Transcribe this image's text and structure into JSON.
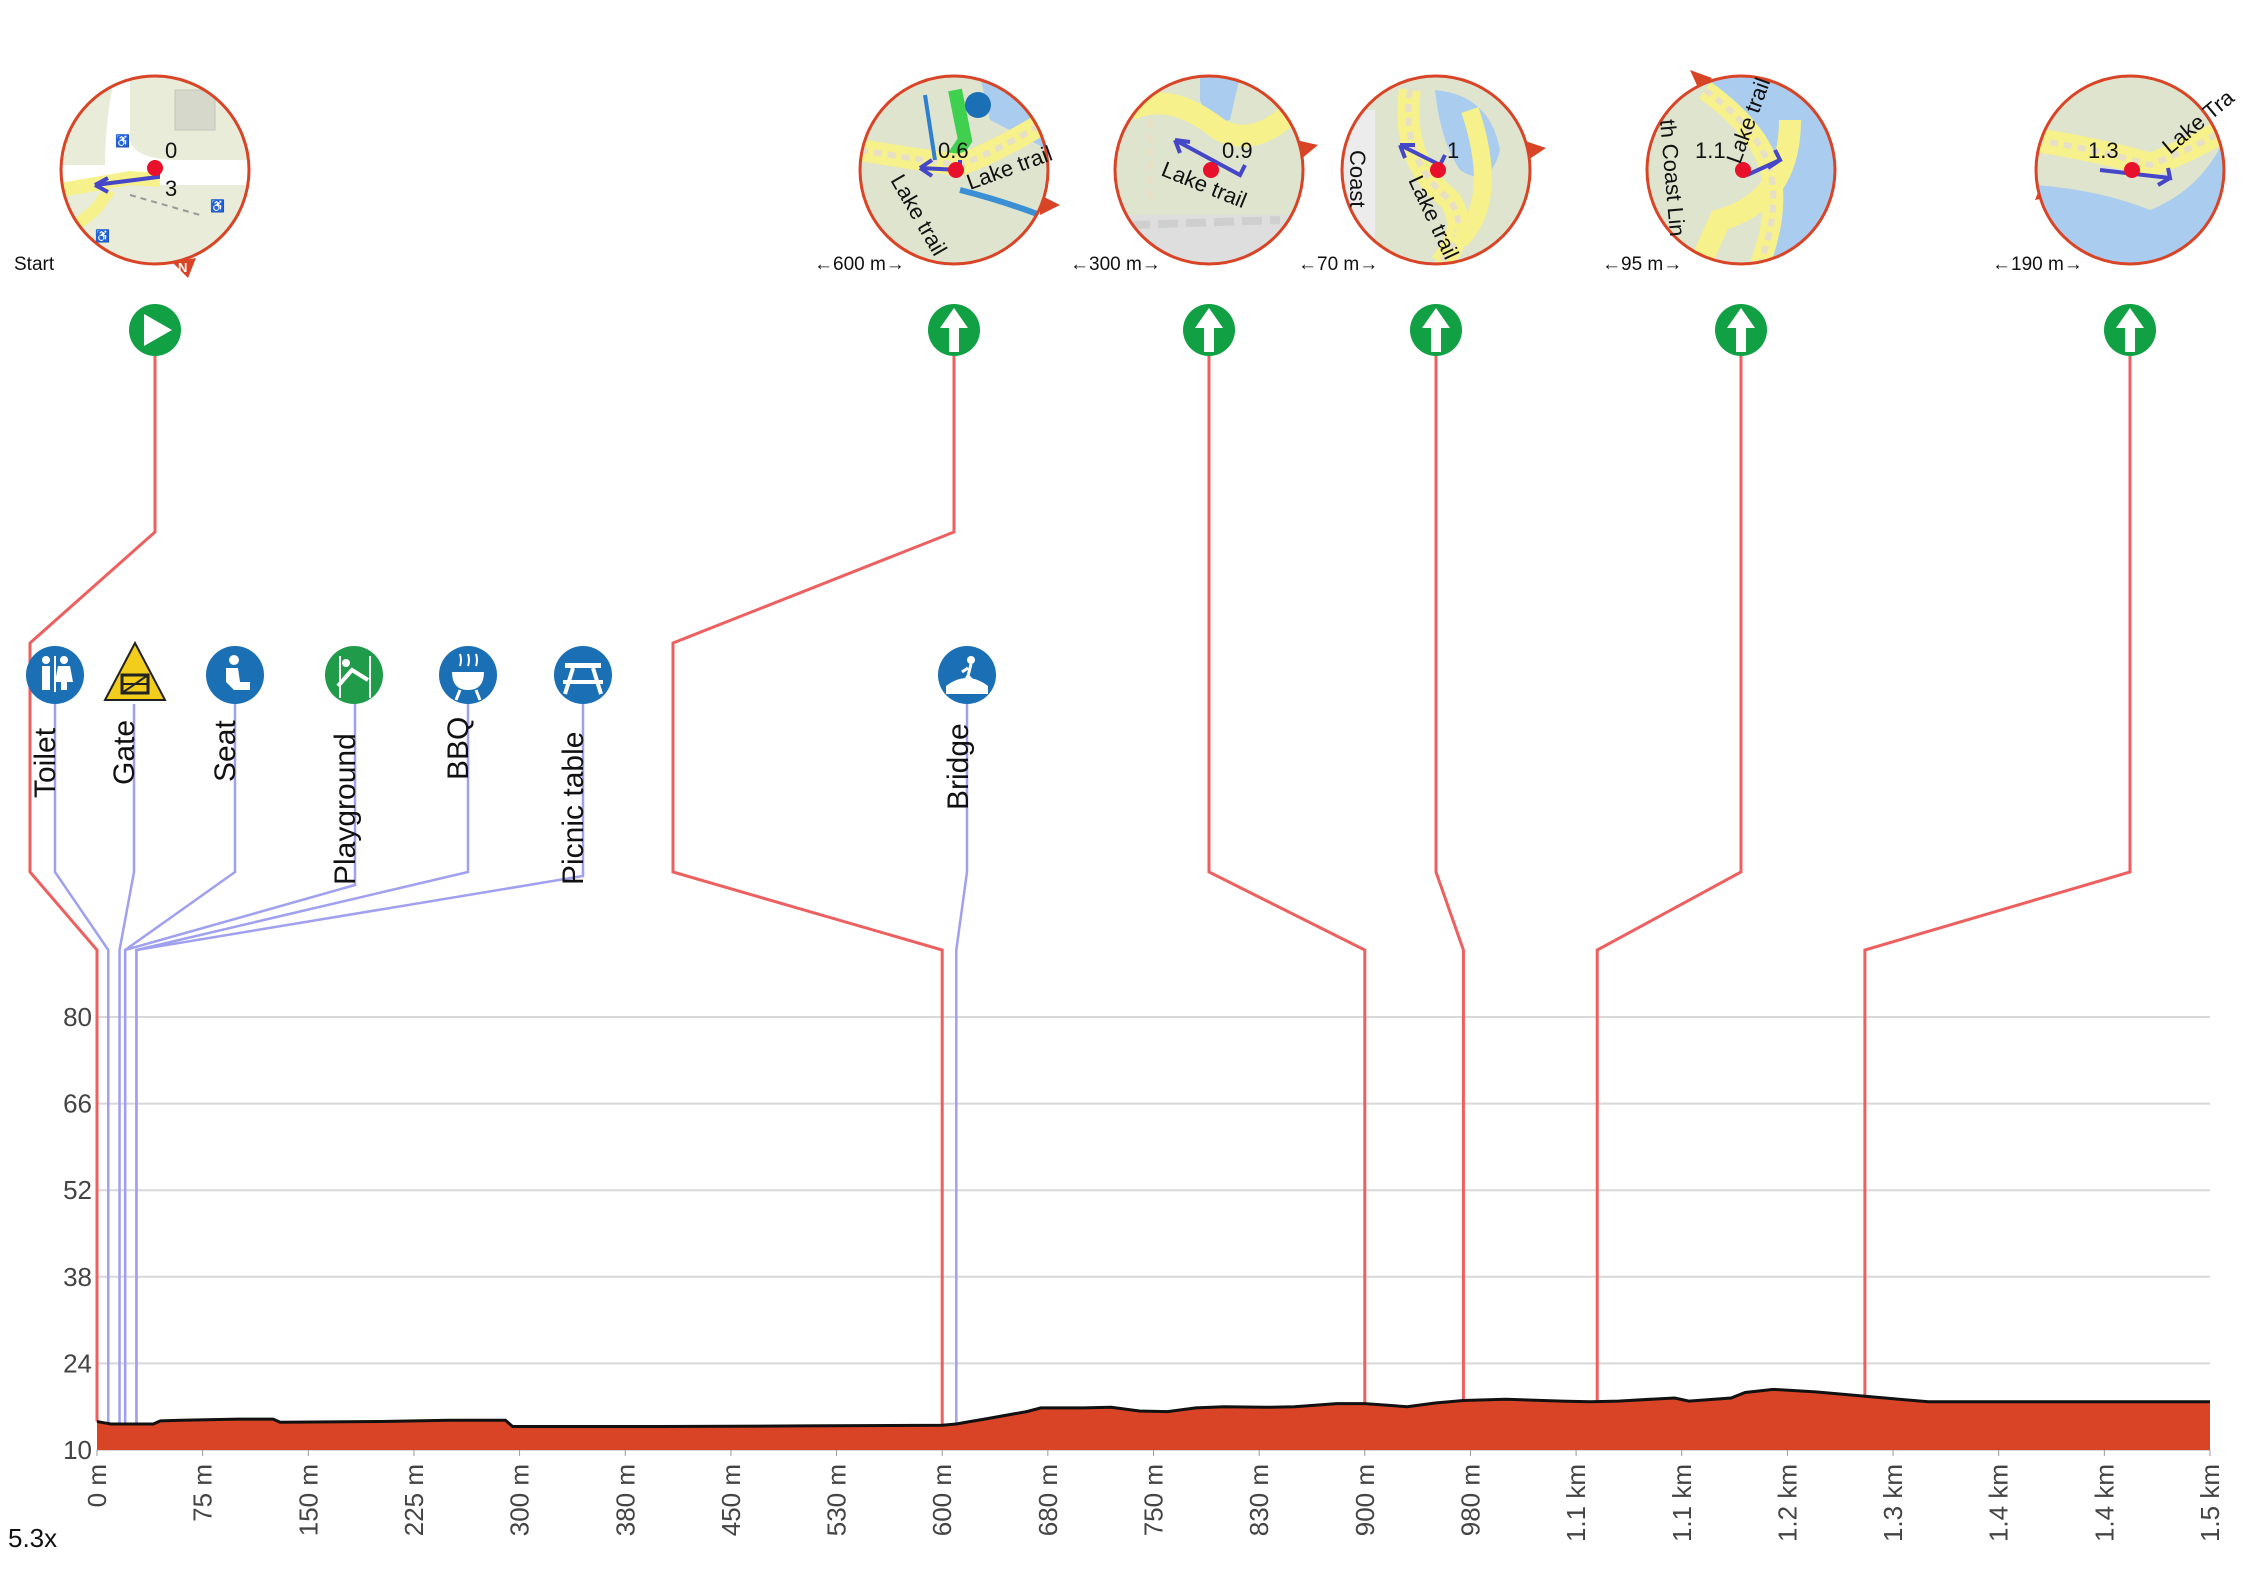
{
  "colors": {
    "route_line": "#ee5f5f",
    "poi_line": "#a0a0f0",
    "profile_fill": "#d94426",
    "profile_stroke": "#111111",
    "grid": "#d8d8d8",
    "nav_icon": "#11a044",
    "poi_blue": "#1a6fb5",
    "poi_green": "#1f9b4a",
    "poi_yellow": "#f3cd1b",
    "map_ring": "#d94426",
    "map_land": "#e9ecd9",
    "map_water": "#aaccee",
    "map_trail": "#f6f18a",
    "route_arrow": "#4646c8"
  },
  "scale_factor": "5.3x",
  "chart_data": {
    "type": "area",
    "title": "",
    "xlabel": "",
    "ylabel": "",
    "ylim": [
      10,
      80
    ],
    "xlim_m": [
      0,
      1500
    ],
    "y_ticks": [
      10,
      24,
      38,
      52,
      66,
      80
    ],
    "x_ticks": [
      {
        "m": 0,
        "label": "0 m"
      },
      {
        "m": 75,
        "label": "75 m"
      },
      {
        "m": 150,
        "label": "150 m"
      },
      {
        "m": 225,
        "label": "225 m"
      },
      {
        "m": 300,
        "label": "300 m"
      },
      {
        "m": 375,
        "label": "380 m"
      },
      {
        "m": 450,
        "label": "450 m"
      },
      {
        "m": 525,
        "label": "530 m"
      },
      {
        "m": 600,
        "label": "600 m"
      },
      {
        "m": 675,
        "label": "680 m"
      },
      {
        "m": 750,
        "label": "750 m"
      },
      {
        "m": 825,
        "label": "830 m"
      },
      {
        "m": 900,
        "label": "900 m"
      },
      {
        "m": 975,
        "label": "980 m"
      },
      {
        "m": 1050,
        "label": "1.1 km"
      },
      {
        "m": 1125,
        "label": "1.1 km"
      },
      {
        "m": 1200,
        "label": "1.2 km"
      },
      {
        "m": 1275,
        "label": "1.3 km"
      },
      {
        "m": 1350,
        "label": "1.4 km"
      },
      {
        "m": 1425,
        "label": "1.4 km"
      },
      {
        "m": 1500,
        "label": "1.5 km"
      }
    ],
    "x": [
      0,
      5,
      10,
      40,
      45,
      60,
      100,
      125,
      130,
      200,
      250,
      290,
      295,
      400,
      500,
      600,
      610,
      620,
      630,
      660,
      670,
      700,
      720,
      740,
      760,
      780,
      800,
      830,
      850,
      880,
      900,
      930,
      950,
      970,
      1000,
      1040,
      1060,
      1080,
      1110,
      1120,
      1130,
      1160,
      1170,
      1190,
      1220,
      1300,
      1400,
      1500
    ],
    "elevation": [
      14.6,
      14.4,
      14.2,
      14.2,
      14.7,
      14.8,
      15.0,
      15.0,
      14.5,
      14.6,
      14.8,
      14.8,
      13.8,
      13.8,
      13.9,
      14.0,
      14.2,
      14.6,
      15.0,
      16.2,
      16.8,
      16.8,
      16.9,
      16.3,
      16.2,
      16.8,
      17.0,
      16.9,
      17.0,
      17.5,
      17.5,
      17.0,
      17.6,
      18.0,
      18.2,
      17.9,
      17.8,
      17.9,
      18.3,
      18.4,
      17.9,
      18.4,
      19.3,
      19.8,
      19.4,
      17.8,
      17.8,
      17.8
    ],
    "route_markers": [
      {
        "label": "Start",
        "km": "0",
        "m": 0,
        "dist": "",
        "icon": "play-icon"
      },
      {
        "label": "",
        "km": "0.6",
        "m": 600,
        "dist": "←600 m→",
        "icon": "straight-arrow-icon"
      },
      {
        "label": "",
        "km": "0.9",
        "m": 900,
        "dist": "←300 m→",
        "icon": "straight-arrow-icon"
      },
      {
        "label": "",
        "km": "1",
        "m": 970,
        "dist": "←70 m→",
        "icon": "straight-arrow-icon"
      },
      {
        "label": "",
        "km": "1.1",
        "m": 1065,
        "dist": "←95 m→",
        "icon": "straight-arrow-icon"
      },
      {
        "label": "",
        "km": "1.3",
        "m": 1255,
        "dist": "←190 m→",
        "icon": "straight-arrow-icon"
      }
    ],
    "pois": [
      {
        "label": "Toilet",
        "m": 8,
        "icon": "toilet-icon",
        "color": "blue"
      },
      {
        "label": "Gate",
        "m": 16,
        "icon": "gate-icon",
        "color": "yellow"
      },
      {
        "label": "Seat",
        "m": 20,
        "icon": "seat-icon",
        "color": "blue"
      },
      {
        "label": "Playground",
        "m": 20,
        "icon": "playground-icon",
        "color": "green"
      },
      {
        "label": "BBQ",
        "m": 28,
        "icon": "bbq-icon",
        "color": "blue"
      },
      {
        "label": "Picnic table",
        "m": 28,
        "icon": "picnic-table-icon",
        "color": "blue"
      },
      {
        "label": "Bridge",
        "m": 610,
        "icon": "bridge-icon",
        "color": "blue"
      }
    ],
    "map_labels": {
      "m0": [
        "0",
        "3"
      ],
      "m1": [
        "Lake trail",
        "Lake trail",
        "Lak"
      ],
      "m2": [
        "Lake trail"
      ],
      "m3": [
        "Lake trail",
        "Coast"
      ],
      "m4": [
        "Lake trail",
        "th Coast Lin"
      ],
      "m5": [
        "Lake Tra"
      ]
    }
  }
}
